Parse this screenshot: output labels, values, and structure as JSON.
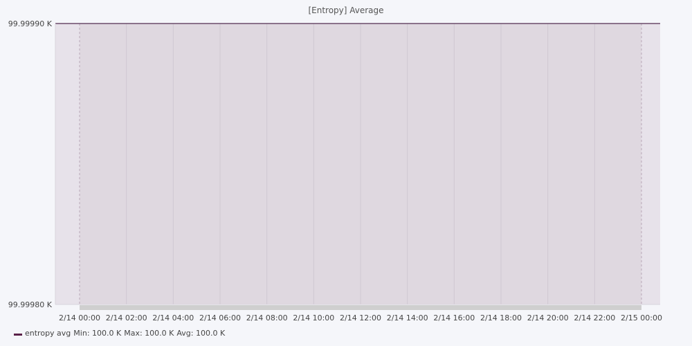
{
  "chart_data": {
    "type": "area",
    "title": "[Entropy] Average",
    "xlabel": "",
    "ylabel": "",
    "x": [
      "2/14 00:00",
      "2/14 02:00",
      "2/14 04:00",
      "2/14 06:00",
      "2/14 08:00",
      "2/14 10:00",
      "2/14 12:00",
      "2/14 14:00",
      "2/14 16:00",
      "2/14 18:00",
      "2/14 20:00",
      "2/14 22:00",
      "2/15 00:00"
    ],
    "x_tick_labels": [
      "2/14 00:00",
      "2/14 02:00",
      "2/14 04:00",
      "2/14 06:00",
      "2/14 08:00",
      "2/14 10:00",
      "2/14 12:00",
      "2/14 14:00",
      "2/14 16:00",
      "2/14 18:00",
      "2/14 20:00",
      "2/14 22:00",
      "2/15 00:00"
    ],
    "y_tick_labels": [
      "99.99990 K",
      "99.99980 K"
    ],
    "ylim": [
      99.9998,
      99.9999
    ],
    "grid": true,
    "legend_position": "bottom-left",
    "colors": {
      "series_line": "#6b4a6b",
      "series_fill": "#dfd8e0",
      "legend_swatch": "#5a2148",
      "plot_background": "#e7e2ea",
      "gridline": "#cfc8d2",
      "scrollbar": "#cfcfcf"
    },
    "series": [
      {
        "name": "entropy avg",
        "values": [
          100.0,
          100.0,
          100.0,
          100.0,
          100.0,
          100.0,
          100.0,
          100.0,
          100.0,
          100.0,
          100.0,
          100.0,
          100.0
        ],
        "stats": {
          "min": "Min: 100.0 K",
          "max": "Max: 100.0 K",
          "avg": "Avg: 100.0 K"
        }
      }
    ]
  }
}
